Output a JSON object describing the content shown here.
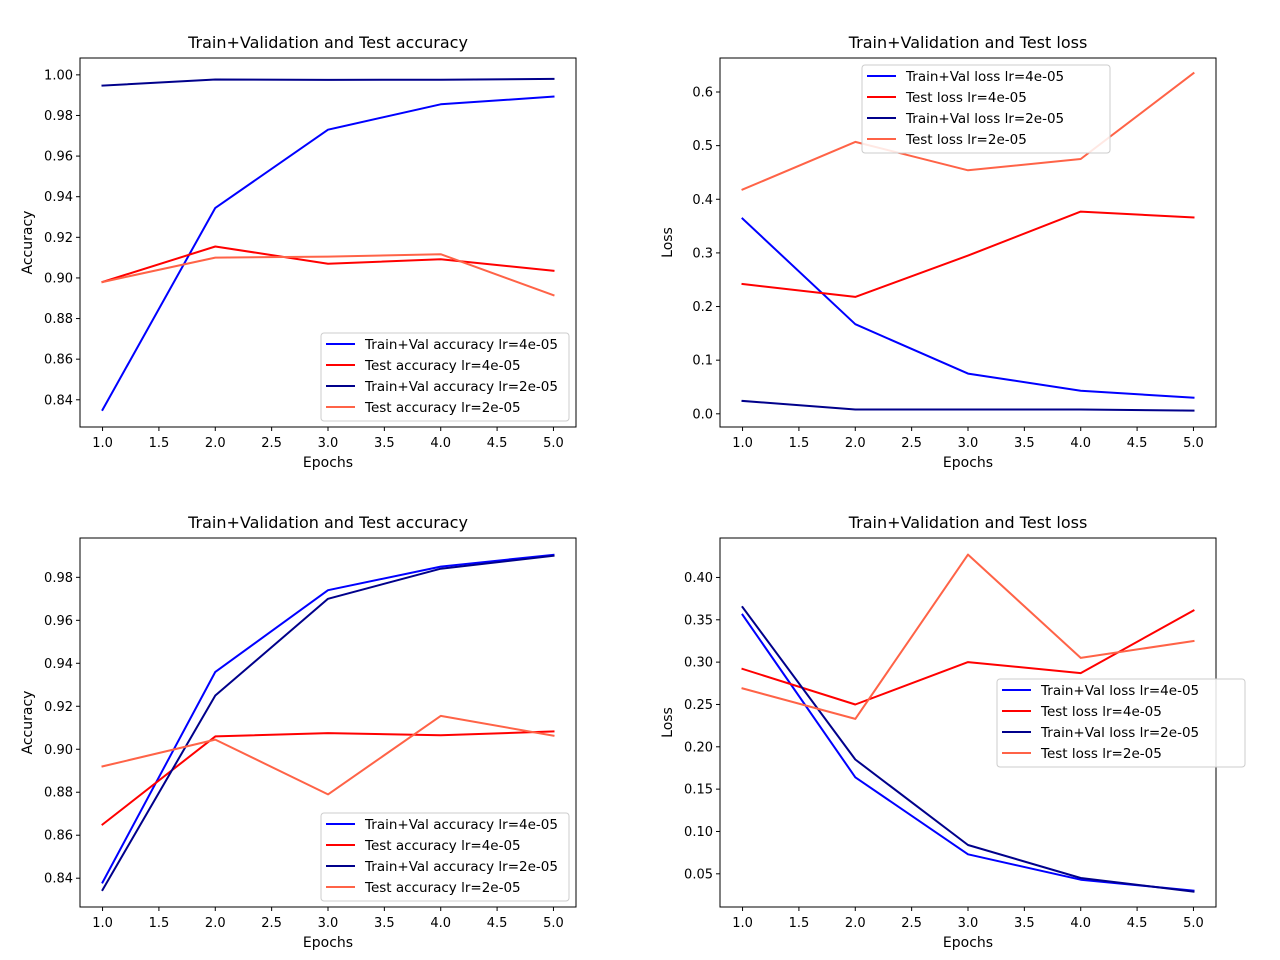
{
  "charts": [
    {
      "type": "line",
      "title": "Train+Validation and Test accuracy",
      "xlabel": "Epochs",
      "ylabel": "Accuracy",
      "x": [
        1,
        2,
        3,
        4,
        5
      ],
      "xlim": [
        0.8,
        5.2
      ],
      "ylim": [
        0.8266,
        1.0083
      ],
      "xticks": [
        "1.0",
        "1.5",
        "2.0",
        "2.5",
        "3.0",
        "3.5",
        "4.0",
        "4.5",
        "5.0"
      ],
      "yticks": [
        "0.84",
        "0.86",
        "0.88",
        "0.90",
        "0.92",
        "0.94",
        "0.96",
        "0.98",
        "1.00"
      ],
      "legend_position": "lower right",
      "series": [
        {
          "name": "Train+Val accuracy lr=4e-05",
          "color": "#0000ff",
          "values": [
            0.835,
            0.9345,
            0.973,
            0.9855,
            0.9893
          ]
        },
        {
          "name": "Test accuracy lr=4e-05",
          "color": "#ff0000",
          "values": [
            0.898,
            0.9155,
            0.907,
            0.9092,
            0.9035
          ]
        },
        {
          "name": "Train+Val accuracy lr=2e-05",
          "color": "#00008b",
          "values": [
            0.9947,
            0.9977,
            0.9975,
            0.9976,
            0.998
          ]
        },
        {
          "name": "Test accuracy lr=2e-05",
          "color": "#ff6347",
          "values": [
            0.898,
            0.91,
            0.9105,
            0.9117,
            0.8915
          ]
        }
      ]
    },
    {
      "type": "line",
      "title": "Train+Validation and Test loss",
      "xlabel": "Epochs",
      "ylabel": "Loss",
      "x": [
        1,
        2,
        3,
        4,
        5
      ],
      "xlim": [
        0.8,
        5.2
      ],
      "ylim": [
        -0.0246,
        0.6634
      ],
      "xticks": [
        "1.0",
        "1.5",
        "2.0",
        "2.5",
        "3.0",
        "3.5",
        "4.0",
        "4.5",
        "5.0"
      ],
      "yticks": [
        "0.0",
        "0.1",
        "0.2",
        "0.3",
        "0.4",
        "0.5",
        "0.6"
      ],
      "legend_position": "upper center",
      "series": [
        {
          "name": "Train+Val loss lr=4e-05",
          "color": "#0000ff",
          "values": [
            0.364,
            0.167,
            0.075,
            0.043,
            0.03
          ]
        },
        {
          "name": "Test loss lr=4e-05",
          "color": "#ff0000",
          "values": [
            0.242,
            0.218,
            0.295,
            0.377,
            0.366
          ]
        },
        {
          "name": "Train+Val loss lr=2e-05",
          "color": "#00008b",
          "values": [
            0.024,
            0.008,
            0.008,
            0.008,
            0.006
          ]
        },
        {
          "name": "Test loss lr=2e-05",
          "color": "#ff6347",
          "values": [
            0.418,
            0.507,
            0.454,
            0.475,
            0.635
          ]
        }
      ]
    },
    {
      "type": "line",
      "title": "Train+Validation and Test accuracy",
      "xlabel": "Epochs",
      "ylabel": "Accuracy",
      "x": [
        1,
        2,
        3,
        4,
        5
      ],
      "xlim": [
        0.8,
        5.2
      ],
      "ylim": [
        0.8266,
        0.9983
      ],
      "xticks": [
        "1.0",
        "1.5",
        "2.0",
        "2.5",
        "3.0",
        "3.5",
        "4.0",
        "4.5",
        "5.0"
      ],
      "yticks": [
        "0.84",
        "0.86",
        "0.88",
        "0.90",
        "0.92",
        "0.94",
        "0.96",
        "0.98"
      ],
      "legend_position": "lower right",
      "series": [
        {
          "name": "Train+Val accuracy lr=4e-05",
          "color": "#0000ff",
          "values": [
            0.838,
            0.936,
            0.974,
            0.985,
            0.9905
          ]
        },
        {
          "name": "Test accuracy lr=4e-05",
          "color": "#ff0000",
          "values": [
            0.865,
            0.906,
            0.9075,
            0.9065,
            0.9083
          ]
        },
        {
          "name": "Train+Val accuracy lr=2e-05",
          "color": "#00008b",
          "values": [
            0.8345,
            0.925,
            0.97,
            0.984,
            0.99
          ]
        },
        {
          "name": "Test accuracy lr=2e-05",
          "color": "#ff6347",
          "values": [
            0.892,
            0.9045,
            0.879,
            0.9155,
            0.9063
          ]
        }
      ]
    },
    {
      "type": "line",
      "title": "Train+Validation and Test loss",
      "xlabel": "Epochs",
      "ylabel": "Loss",
      "x": [
        1,
        2,
        3,
        4,
        5
      ],
      "xlim": [
        0.8,
        5.2
      ],
      "ylim": [
        0.0108,
        0.4466
      ],
      "xticks": [
        "1.0",
        "1.5",
        "2.0",
        "2.5",
        "3.0",
        "3.5",
        "4.0",
        "4.5",
        "5.0"
      ],
      "yticks": [
        "0.05",
        "0.10",
        "0.15",
        "0.20",
        "0.25",
        "0.30",
        "0.35",
        "0.40"
      ],
      "legend_position": "center right",
      "series": [
        {
          "name": "Train+Val loss lr=4e-05",
          "color": "#0000ff",
          "values": [
            0.356,
            0.164,
            0.073,
            0.043,
            0.03
          ]
        },
        {
          "name": "Test loss lr=4e-05",
          "color": "#ff0000",
          "values": [
            0.292,
            0.25,
            0.3,
            0.287,
            0.361
          ]
        },
        {
          "name": "Train+Val loss lr=2e-05",
          "color": "#00008b",
          "values": [
            0.365,
            0.185,
            0.084,
            0.045,
            0.029
          ]
        },
        {
          "name": "Test loss lr=2e-05",
          "color": "#ff6347",
          "values": [
            0.269,
            0.233,
            0.427,
            0.305,
            0.325
          ]
        }
      ]
    }
  ]
}
